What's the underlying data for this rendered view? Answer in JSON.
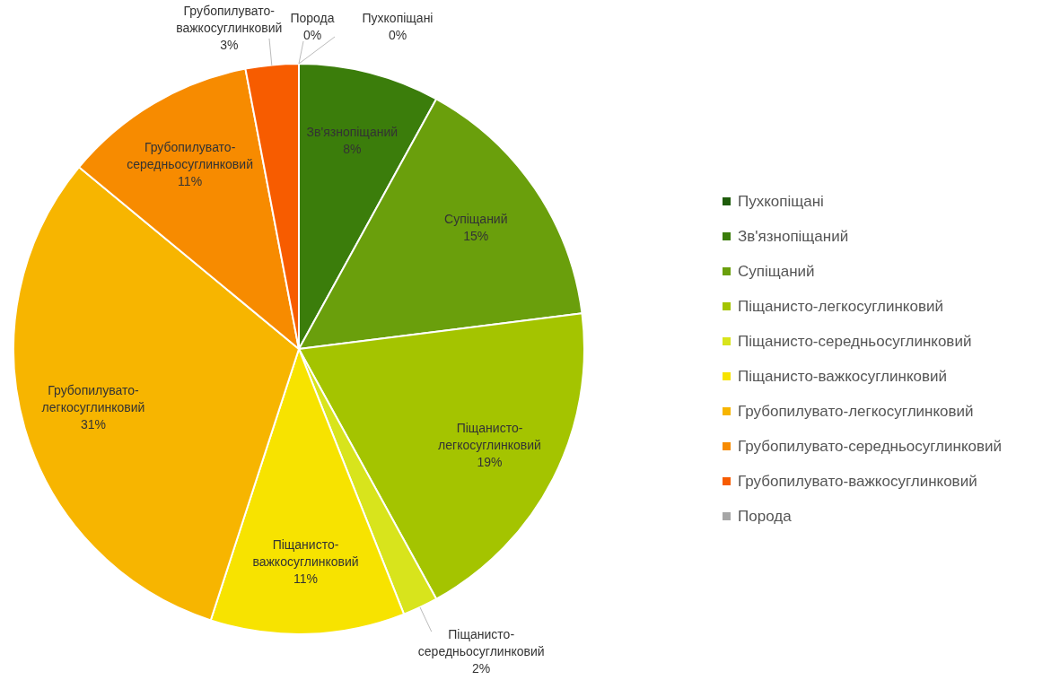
{
  "chart_data": {
    "type": "pie",
    "categories": [
      "Пухкопіщані",
      "Зв'язнопіщаний",
      "Супіщаний",
      "Піщанисто-легкосуглинковий",
      "Піщанисто-середньосуглинковий",
      "Піщанисто-важкосуглинковий",
      "Грубопилувато-легкосуглинковий",
      "Грубопилувато-середньосуглинковий",
      "Грубопилувато-важкосуглинковий",
      "Порода"
    ],
    "values": [
      0,
      8,
      15,
      19,
      2,
      11,
      31,
      11,
      3,
      0
    ],
    "colors": [
      "#1f5c0c",
      "#3b7d0b",
      "#6a9f0c",
      "#a4c400",
      "#d8e41c",
      "#f7e300",
      "#f7b500",
      "#f78b00",
      "#f75c00",
      "#a6a6a6"
    ],
    "value_labels": [
      "0%",
      "8%",
      "15%",
      "19%",
      "2%",
      "11%",
      "31%",
      "11%",
      "3%",
      "0%"
    ],
    "legend": "right"
  }
}
